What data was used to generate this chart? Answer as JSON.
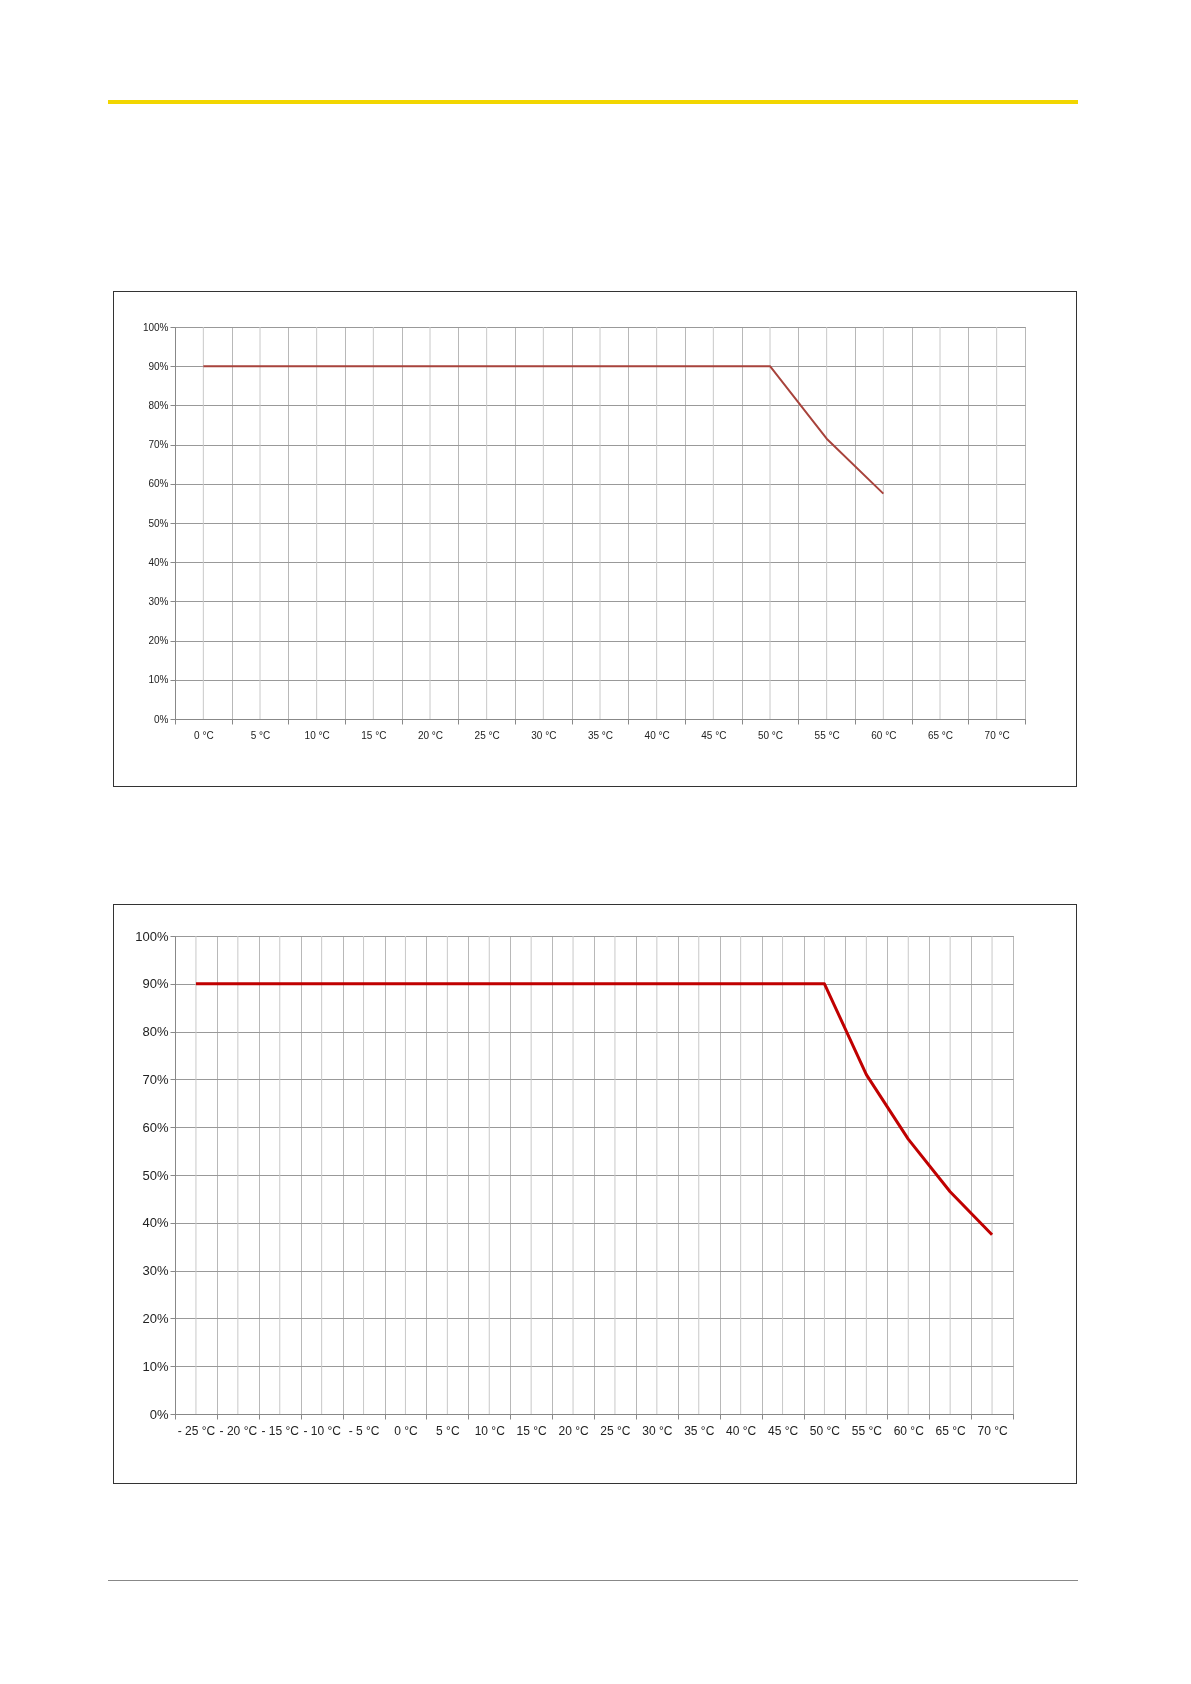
{
  "chart_data": [
    {
      "type": "line",
      "categories": [
        "0 °C",
        "5 °C",
        "10 °C",
        "15 °C",
        "20 °C",
        "25 °C",
        "30 °C",
        "35 °C",
        "40 °C",
        "45 °C",
        "50 °C",
        "55 °C",
        "60 °C",
        "65 °C",
        "70 °C"
      ],
      "series": [
        {
          "color": "#a8433c",
          "values": [
            90,
            90,
            90,
            90,
            90,
            90,
            90,
            90,
            90,
            90,
            90,
            71.5,
            57.5,
            null,
            null
          ]
        }
      ],
      "ylim": [
        0,
        100
      ],
      "yticks": [
        {
          "value": 0,
          "label": "0%"
        },
        {
          "value": 10,
          "label": "10%"
        },
        {
          "value": 20,
          "label": "20%"
        },
        {
          "value": 30,
          "label": "30%"
        },
        {
          "value": 40,
          "label": "40%"
        },
        {
          "value": 50,
          "label": "50%"
        },
        {
          "value": 60,
          "label": "60%"
        },
        {
          "value": 70,
          "label": "70%"
        },
        {
          "value": 80,
          "label": "80%"
        },
        {
          "value": 90,
          "label": "90%"
        },
        {
          "value": 100,
          "label": "100%"
        }
      ],
      "grid": true,
      "marker": "none",
      "line_style": "solid"
    },
    {
      "type": "line",
      "categories": [
        "- 25 °C",
        "- 20 °C",
        "- 15 °C",
        "- 10 °C",
        "- 5 °C",
        "0 °C",
        "5 °C",
        "10 °C",
        "15 °C",
        "20 °C",
        "25 °C",
        "30 °C",
        "35 °C",
        "40 °C",
        "45 °C",
        "50 °C",
        "55 °C",
        "60 °C",
        "65 °C",
        "70 °C"
      ],
      "series": [
        {
          "color": "#c00000",
          "values": [
            90,
            90,
            90,
            90,
            90,
            90,
            90,
            90,
            90,
            90,
            90,
            90,
            90,
            90,
            90,
            90,
            71,
            57.5,
            46.5,
            37.5
          ]
        }
      ],
      "ylim": [
        0,
        100
      ],
      "yticks": [
        {
          "value": 0,
          "label": "0%"
        },
        {
          "value": 10,
          "label": "10%"
        },
        {
          "value": 20,
          "label": "20%"
        },
        {
          "value": 30,
          "label": "30%"
        },
        {
          "value": 40,
          "label": "40%"
        },
        {
          "value": 50,
          "label": "50%"
        },
        {
          "value": 60,
          "label": "60%"
        },
        {
          "value": 70,
          "label": "70%"
        },
        {
          "value": 80,
          "label": "80%"
        },
        {
          "value": 90,
          "label": "90%"
        },
        {
          "value": 100,
          "label": "100%"
        }
      ],
      "grid": true,
      "marker": "none",
      "line_style": "solid"
    }
  ]
}
